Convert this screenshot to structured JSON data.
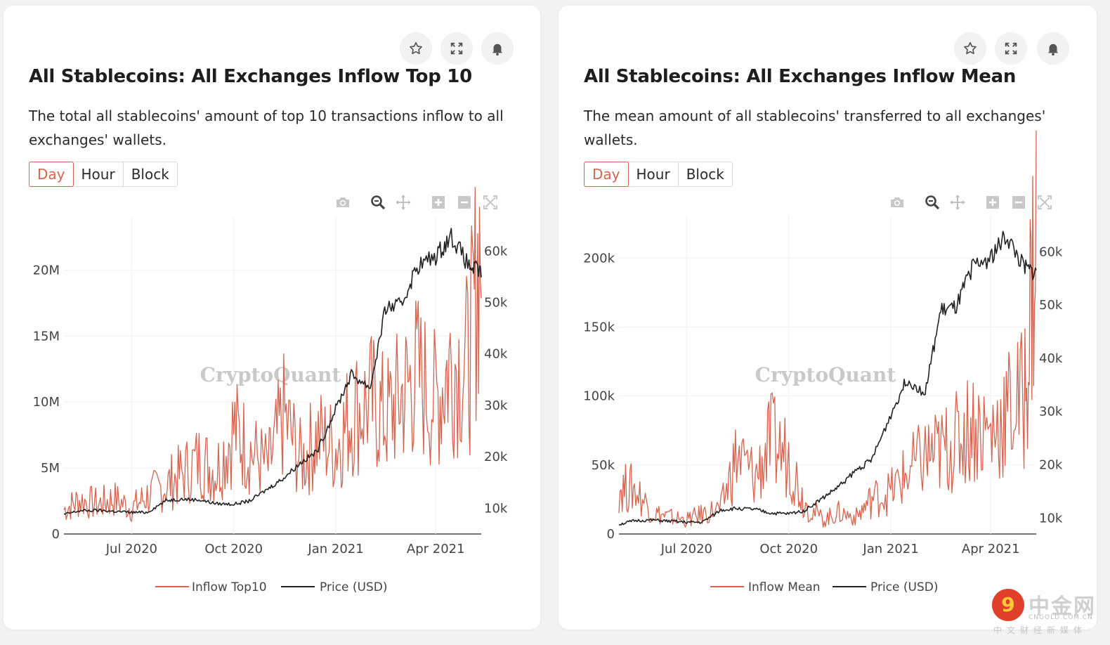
{
  "charts": [
    {
      "title": "All Stablecoins: All Exchanges Inflow Top 10",
      "description": "The total all stablecoins' amount of top 10 transactions inflow to all exchanges' wallets.",
      "tabs": [
        "Day",
        "Hour",
        "Block"
      ],
      "active_tab": "Day",
      "watermark": "CryptoQuant",
      "legend": [
        "Inflow Top10",
        "Price (USD)"
      ],
      "left_ticks": [
        {
          "value": 0,
          "label": "0"
        },
        {
          "value": 5000000,
          "label": "5M"
        },
        {
          "value": 10000000,
          "label": "10M"
        },
        {
          "value": 15000000,
          "label": "15M"
        },
        {
          "value": 20000000,
          "label": "20M"
        }
      ],
      "right_ticks": [
        {
          "value": 10000,
          "label": "10k"
        },
        {
          "value": 20000,
          "label": "20k"
        },
        {
          "value": 30000,
          "label": "30k"
        },
        {
          "value": 40000,
          "label": "40k"
        },
        {
          "value": 50000,
          "label": "50k"
        },
        {
          "value": 60000,
          "label": "60k"
        }
      ]
    },
    {
      "title": "All Stablecoins: All Exchanges Inflow Mean",
      "description": "The mean amount of all stablecoins' transferred to all exchanges' wallets.",
      "tabs": [
        "Day",
        "Hour",
        "Block"
      ],
      "active_tab": "Day",
      "watermark": "CryptoQuant",
      "legend": [
        "Inflow Mean",
        "Price (USD)"
      ],
      "left_ticks": [
        {
          "value": 0,
          "label": "0"
        },
        {
          "value": 50000,
          "label": "50k"
        },
        {
          "value": 100000,
          "label": "100k"
        },
        {
          "value": 150000,
          "label": "150k"
        },
        {
          "value": 200000,
          "label": "200k"
        }
      ],
      "right_ticks": [
        {
          "value": 10000,
          "label": "10k"
        },
        {
          "value": 20000,
          "label": "20k"
        },
        {
          "value": 30000,
          "label": "30k"
        },
        {
          "value": 40000,
          "label": "40k"
        },
        {
          "value": 50000,
          "label": "50k"
        },
        {
          "value": 60000,
          "label": "60k"
        }
      ]
    }
  ],
  "brand": {
    "name": "中金网",
    "url": "CNGOLD.COM.CN",
    "sub": "中文财经新媒体"
  },
  "colors": {
    "inflow": "#d9634c",
    "price": "#222222",
    "accent": "#d9634c"
  },
  "chart_data": [
    {
      "type": "line",
      "title": "All Stablecoins: All Exchanges Inflow Top 10",
      "x_range": [
        "2020-05-01",
        "2021-05-12"
      ],
      "x_ticks": [
        "Jul 2020",
        "Oct 2020",
        "Jan 2021",
        "Apr 2021"
      ],
      "y_left_range": [
        0,
        23000000
      ],
      "y_right_range": [
        5000,
        64000
      ],
      "grid": true,
      "legend_position": "bottom",
      "series": [
        {
          "name": "Inflow Top10",
          "axis": "left",
          "x": [
            "2020-05-01",
            "2020-05-15",
            "2020-06-01",
            "2020-06-15",
            "2020-07-01",
            "2020-07-15",
            "2020-08-01",
            "2020-08-15",
            "2020-09-01",
            "2020-09-15",
            "2020-10-01",
            "2020-10-15",
            "2020-11-01",
            "2020-11-15",
            "2020-12-01",
            "2020-12-15",
            "2021-01-01",
            "2021-01-15",
            "2021-02-01",
            "2021-02-15",
            "2021-03-01",
            "2021-03-15",
            "2021-04-01",
            "2021-04-15",
            "2021-05-01",
            "2021-05-12"
          ],
          "y": [
            1800000,
            2500000,
            2200000,
            2600000,
            1900000,
            2800000,
            3600000,
            4400000,
            5500000,
            4600000,
            7800000,
            6200000,
            4900000,
            8700000,
            5300000,
            7200000,
            6400000,
            8900000,
            9800000,
            8600000,
            10200000,
            11800000,
            9700000,
            12800000,
            12500000,
            22500000
          ]
        },
        {
          "name": "Price (USD)",
          "axis": "right",
          "x": [
            "2020-05-01",
            "2020-05-15",
            "2020-06-01",
            "2020-06-15",
            "2020-07-01",
            "2020-07-15",
            "2020-08-01",
            "2020-08-15",
            "2020-09-01",
            "2020-09-15",
            "2020-10-01",
            "2020-10-15",
            "2020-11-01",
            "2020-11-15",
            "2020-12-01",
            "2020-12-15",
            "2021-01-01",
            "2021-01-15",
            "2021-02-01",
            "2021-02-15",
            "2021-03-01",
            "2021-03-15",
            "2021-04-01",
            "2021-04-15",
            "2021-05-01",
            "2021-05-12"
          ],
          "y": [
            8800,
            9500,
            9600,
            9400,
            9200,
            9200,
            11500,
            11800,
            11600,
            10900,
            10800,
            11400,
            13800,
            15900,
            19000,
            21000,
            29400,
            36000,
            33500,
            49000,
            49500,
            57000,
            59000,
            63000,
            57000,
            56000
          ]
        }
      ]
    },
    {
      "type": "line",
      "title": "All Stablecoins: All Exchanges Inflow Mean",
      "x_range": [
        "2020-05-01",
        "2021-05-12"
      ],
      "x_ticks": [
        "Jul 2020",
        "Oct 2020",
        "Jan 2021",
        "Apr 2021"
      ],
      "y_left_range": [
        0,
        220000
      ],
      "y_right_range": [
        7000,
        64000
      ],
      "grid": true,
      "legend_position": "bottom",
      "series": [
        {
          "name": "Inflow Mean",
          "axis": "left",
          "x": [
            "2020-05-01",
            "2020-05-15",
            "2020-06-01",
            "2020-06-15",
            "2020-07-01",
            "2020-07-15",
            "2020-08-01",
            "2020-08-15",
            "2020-09-01",
            "2020-09-15",
            "2020-10-01",
            "2020-10-15",
            "2020-11-01",
            "2020-11-15",
            "2020-12-01",
            "2020-12-15",
            "2021-01-01",
            "2021-01-15",
            "2021-02-01",
            "2021-02-15",
            "2021-03-01",
            "2021-03-15",
            "2021-04-01",
            "2021-04-15",
            "2021-05-01",
            "2021-05-12"
          ],
          "y": [
            33000,
            32000,
            15000,
            12000,
            10000,
            14000,
            18000,
            55000,
            40000,
            65000,
            55000,
            22000,
            10000,
            15000,
            12000,
            25000,
            30000,
            42000,
            55000,
            58000,
            65000,
            78000,
            70000,
            85000,
            95000,
            215000
          ]
        },
        {
          "name": "Price (USD)",
          "axis": "right",
          "x": [
            "2020-05-01",
            "2020-05-15",
            "2020-06-01",
            "2020-06-15",
            "2020-07-01",
            "2020-07-15",
            "2020-08-01",
            "2020-08-15",
            "2020-09-01",
            "2020-09-15",
            "2020-10-01",
            "2020-10-15",
            "2020-11-01",
            "2020-11-15",
            "2020-12-01",
            "2020-12-15",
            "2021-01-01",
            "2021-01-15",
            "2021-02-01",
            "2021-02-15",
            "2021-03-01",
            "2021-03-15",
            "2021-04-01",
            "2021-04-15",
            "2021-05-01",
            "2021-05-12"
          ],
          "y": [
            8800,
            9500,
            9600,
            9400,
            9200,
            9200,
            11500,
            11800,
            11600,
            10900,
            10800,
            11400,
            13800,
            15900,
            19000,
            21000,
            29400,
            36000,
            33500,
            49000,
            49500,
            57000,
            59000,
            63000,
            57000,
            56000
          ]
        }
      ]
    }
  ]
}
